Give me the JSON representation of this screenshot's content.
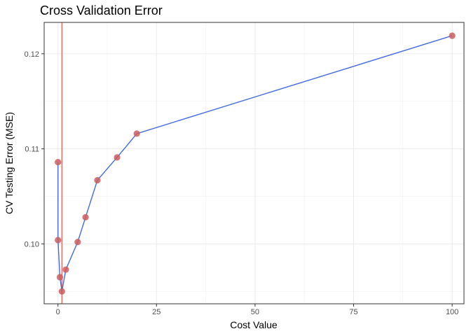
{
  "chart_data": {
    "type": "line",
    "title": "Cross Validation Error",
    "xlabel": "Cost Value",
    "ylabel": "CV Testing Error (MSE)",
    "xlim": [
      -3.5,
      103
    ],
    "ylim": [
      0.0937,
      0.1233
    ],
    "x_ticks": [
      0,
      25,
      50,
      75,
      100
    ],
    "x_tick_labels": [
      "0",
      "25",
      "50",
      "75",
      "100"
    ],
    "y_ticks": [
      0.1,
      0.11,
      0.12
    ],
    "y_tick_labels": [
      "0.10",
      "0.11",
      "0.12"
    ],
    "grid": true,
    "legend": "none",
    "series": [
      {
        "x": [
          0.001,
          0.01,
          0.5,
          1,
          2,
          5,
          7,
          10,
          15,
          20,
          100
        ],
        "y": [
          0.1086,
          0.1004,
          0.0965,
          0.095,
          0.0973,
          0.1002,
          0.1028,
          0.1067,
          0.1091,
          0.1116,
          0.1219
        ],
        "line_color": "#4169e1",
        "point_color": "#cd5c5c"
      }
    ],
    "vline": {
      "x": 1,
      "color": "#e0554a"
    }
  }
}
